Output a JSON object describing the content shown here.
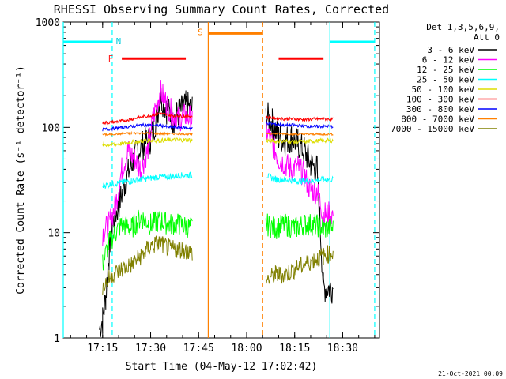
{
  "chart_data": {
    "type": "line",
    "title": "RHESSI Observing Summary Count Rates, Corrected",
    "xlabel": "Start Time (04-May-12 17:02:42)",
    "ylabel": "Corrected Count Rate (s⁻¹ detector⁻¹)",
    "ylog": true,
    "ylim": [
      1,
      1000
    ],
    "xlim": [
      "17:02:42",
      "18:41:30"
    ],
    "xticks": [
      "17:15",
      "17:30",
      "17:45",
      "18:00",
      "18:15",
      "18:30"
    ],
    "yticks": [
      "1",
      "10",
      "100",
      "1000"
    ],
    "footer_date": "21-Oct-2021 00:09",
    "legend": {
      "position": "top-right",
      "header_line1": "Det 1,3,5,6,9,",
      "header_line2": "Att 0"
    },
    "flag_markers": [
      {
        "label": "N",
        "color": "#00ccdd",
        "x": "17:18"
      },
      {
        "label": "F",
        "color": "#ff2020",
        "x": "17:18"
      },
      {
        "label": "S",
        "color": "#ff8000",
        "x": "17:48"
      }
    ],
    "flag_bars": [
      {
        "color": "#00ffff",
        "from": "17:02:42",
        "to": "17:18",
        "y": 650
      },
      {
        "color": "#00ffff",
        "from": "18:26",
        "to": "18:40",
        "y": 650
      },
      {
        "color": "#ff0000",
        "from": "17:21",
        "to": "17:41",
        "y": 450
      },
      {
        "color": "#ff0000",
        "from": "18:10",
        "to": "18:24",
        "y": 450
      },
      {
        "color": "#ff8000",
        "from": "17:48",
        "to": "18:05",
        "y": 780
      }
    ],
    "vlines": [
      {
        "x": "17:02:42",
        "color": "#00ffff",
        "dash": false
      },
      {
        "x": "17:18",
        "color": "#00ffff",
        "dash": true
      },
      {
        "x": "17:48",
        "color": "#ff8000",
        "dash": false
      },
      {
        "x": "18:05",
        "color": "#ff8000",
        "dash": true
      },
      {
        "x": "18:26",
        "color": "#00ffff",
        "dash": false
      },
      {
        "x": "18:40",
        "color": "#00ffff",
        "dash": true
      }
    ],
    "series": [
      {
        "name": "3 - 6 keV",
        "color": "#000000",
        "points": [
          [
            "17:14",
            1.2
          ],
          [
            "17:15",
            1.5
          ],
          [
            "17:16",
            2.5
          ],
          [
            "17:17",
            6
          ],
          [
            "17:18",
            12
          ],
          [
            "17:20",
            18
          ],
          [
            "17:22",
            30
          ],
          [
            "17:24",
            45
          ],
          [
            "17:26",
            60
          ],
          [
            "17:28",
            70
          ],
          [
            "17:30",
            78
          ],
          [
            "17:32",
            130
          ],
          [
            "17:33",
            200
          ],
          [
            "17:35",
            150
          ],
          [
            "17:37",
            120
          ],
          [
            "17:39",
            140
          ],
          [
            "17:41",
            160
          ],
          [
            "17:43",
            150
          ],
          [
            "18:06",
            130
          ],
          [
            "18:08",
            110
          ],
          [
            "18:10",
            80
          ],
          [
            "18:12",
            75
          ],
          [
            "18:14",
            80
          ],
          [
            "18:16",
            70
          ],
          [
            "18:18",
            60
          ],
          [
            "18:20",
            45
          ],
          [
            "18:22",
            40
          ],
          [
            "18:24",
            3
          ],
          [
            "18:27",
            3
          ]
        ]
      },
      {
        "name": "6 - 12 keV",
        "color": "#ff00ff",
        "points": [
          [
            "17:15",
            10
          ],
          [
            "17:17",
            12
          ],
          [
            "17:19",
            18
          ],
          [
            "17:21",
            40
          ],
          [
            "17:23",
            60
          ],
          [
            "17:25",
            50
          ],
          [
            "17:27",
            40
          ],
          [
            "17:29",
            60
          ],
          [
            "17:31",
            130
          ],
          [
            "17:33",
            220
          ],
          [
            "17:35",
            170
          ],
          [
            "17:37",
            130
          ],
          [
            "17:39",
            120
          ],
          [
            "17:41",
            130
          ],
          [
            "17:43",
            120
          ],
          [
            "18:06",
            95
          ],
          [
            "18:08",
            70
          ],
          [
            "18:10",
            50
          ],
          [
            "18:12",
            45
          ],
          [
            "18:14",
            40
          ],
          [
            "18:16",
            42
          ],
          [
            "18:18",
            35
          ],
          [
            "18:20",
            25
          ],
          [
            "18:22",
            25
          ],
          [
            "18:24",
            15
          ],
          [
            "18:27",
            15
          ]
        ]
      },
      {
        "name": "12 - 25 keV",
        "color": "#00ff00",
        "points": [
          [
            "17:15",
            5
          ],
          [
            "17:17",
            8
          ],
          [
            "17:19",
            10
          ],
          [
            "17:21",
            12
          ],
          [
            "17:24",
            11
          ],
          [
            "17:27",
            14
          ],
          [
            "17:30",
            12
          ],
          [
            "17:33",
            13
          ],
          [
            "17:36",
            12
          ],
          [
            "17:39",
            12
          ],
          [
            "17:43",
            11
          ],
          [
            "18:06",
            12
          ],
          [
            "18:09",
            11
          ],
          [
            "18:12",
            12
          ],
          [
            "18:15",
            11
          ],
          [
            "18:18",
            12
          ],
          [
            "18:21",
            12
          ],
          [
            "18:24",
            11
          ],
          [
            "18:27",
            11
          ]
        ]
      },
      {
        "name": "25 - 50 keV",
        "color": "#00ffff",
        "points": [
          [
            "17:15",
            28
          ],
          [
            "17:18",
            29
          ],
          [
            "17:21",
            30
          ],
          [
            "17:24",
            31
          ],
          [
            "17:27",
            32
          ],
          [
            "17:30",
            33
          ],
          [
            "17:33",
            34
          ],
          [
            "17:36",
            34
          ],
          [
            "17:39",
            35
          ],
          [
            "17:43",
            35
          ],
          [
            "18:06",
            35
          ],
          [
            "18:09",
            32
          ],
          [
            "18:12",
            32
          ],
          [
            "18:15",
            31
          ],
          [
            "18:18",
            31
          ],
          [
            "18:21",
            31
          ],
          [
            "18:24",
            32
          ],
          [
            "18:27",
            32
          ]
        ]
      },
      {
        "name": "50 - 100 keV",
        "color": "#dddd00",
        "points": [
          [
            "17:15",
            68
          ],
          [
            "17:18",
            69
          ],
          [
            "17:21",
            70
          ],
          [
            "17:24",
            72
          ],
          [
            "17:27",
            74
          ],
          [
            "17:30",
            75
          ],
          [
            "17:33",
            75
          ],
          [
            "17:36",
            76
          ],
          [
            "17:39",
            76
          ],
          [
            "17:43",
            76
          ],
          [
            "18:06",
            75
          ],
          [
            "18:09",
            74
          ],
          [
            "18:12",
            74
          ],
          [
            "18:15",
            73
          ],
          [
            "18:18",
            73
          ],
          [
            "18:21",
            74
          ],
          [
            "18:24",
            75
          ],
          [
            "18:27",
            75
          ]
        ]
      },
      {
        "name": "100 - 300 keV",
        "color": "#ff0000",
        "points": [
          [
            "17:15",
            110
          ],
          [
            "17:18",
            112
          ],
          [
            "17:21",
            115
          ],
          [
            "17:24",
            120
          ],
          [
            "17:27",
            125
          ],
          [
            "17:30",
            130
          ],
          [
            "17:33",
            135
          ],
          [
            "17:36",
            130
          ],
          [
            "17:39",
            128
          ],
          [
            "17:43",
            128
          ],
          [
            "18:06",
            125
          ],
          [
            "18:09",
            122
          ],
          [
            "18:12",
            120
          ],
          [
            "18:15",
            120
          ],
          [
            "18:18",
            118
          ],
          [
            "18:21",
            120
          ],
          [
            "18:24",
            120
          ],
          [
            "18:27",
            120
          ]
        ]
      },
      {
        "name": "300 - 800 keV",
        "color": "#0000ff",
        "points": [
          [
            "17:15",
            95
          ],
          [
            "17:18",
            97
          ],
          [
            "17:21",
            100
          ],
          [
            "17:24",
            102
          ],
          [
            "17:27",
            105
          ],
          [
            "17:30",
            105
          ],
          [
            "17:33",
            104
          ],
          [
            "17:36",
            100
          ],
          [
            "17:39",
            100
          ],
          [
            "17:43",
            98
          ],
          [
            "18:06",
            110
          ],
          [
            "18:09",
            107
          ],
          [
            "18:12",
            105
          ],
          [
            "18:15",
            105
          ],
          [
            "18:18",
            103
          ],
          [
            "18:21",
            102
          ],
          [
            "18:24",
            102
          ],
          [
            "18:27",
            102
          ]
        ]
      },
      {
        "name": "800 - 7000 keV",
        "color": "#ff8000",
        "points": [
          [
            "17:15",
            85
          ],
          [
            "17:18",
            86
          ],
          [
            "17:21",
            87
          ],
          [
            "17:24",
            88
          ],
          [
            "17:27",
            88
          ],
          [
            "17:30",
            88
          ],
          [
            "17:33",
            87
          ],
          [
            "17:36",
            87
          ],
          [
            "17:39",
            87
          ],
          [
            "17:43",
            86
          ],
          [
            "18:06",
            88
          ],
          [
            "18:09",
            87
          ],
          [
            "18:12",
            87
          ],
          [
            "18:15",
            86
          ],
          [
            "18:18",
            86
          ],
          [
            "18:21",
            86
          ],
          [
            "18:24",
            86
          ],
          [
            "18:27",
            86
          ]
        ]
      },
      {
        "name": "7000 - 15000 keV",
        "color": "#808000",
        "points": [
          [
            "17:15",
            3
          ],
          [
            "17:18",
            4
          ],
          [
            "17:21",
            4.5
          ],
          [
            "17:24",
            5
          ],
          [
            "17:27",
            6
          ],
          [
            "17:30",
            7.5
          ],
          [
            "17:33",
            8
          ],
          [
            "17:36",
            7
          ],
          [
            "17:39",
            7
          ],
          [
            "17:43",
            6.5
          ],
          [
            "18:06",
            3.5
          ],
          [
            "18:09",
            4
          ],
          [
            "18:12",
            4
          ],
          [
            "18:15",
            4.5
          ],
          [
            "18:18",
            5
          ],
          [
            "18:21",
            5.5
          ],
          [
            "18:24",
            6
          ],
          [
            "18:27",
            6.5
          ]
        ]
      }
    ]
  }
}
